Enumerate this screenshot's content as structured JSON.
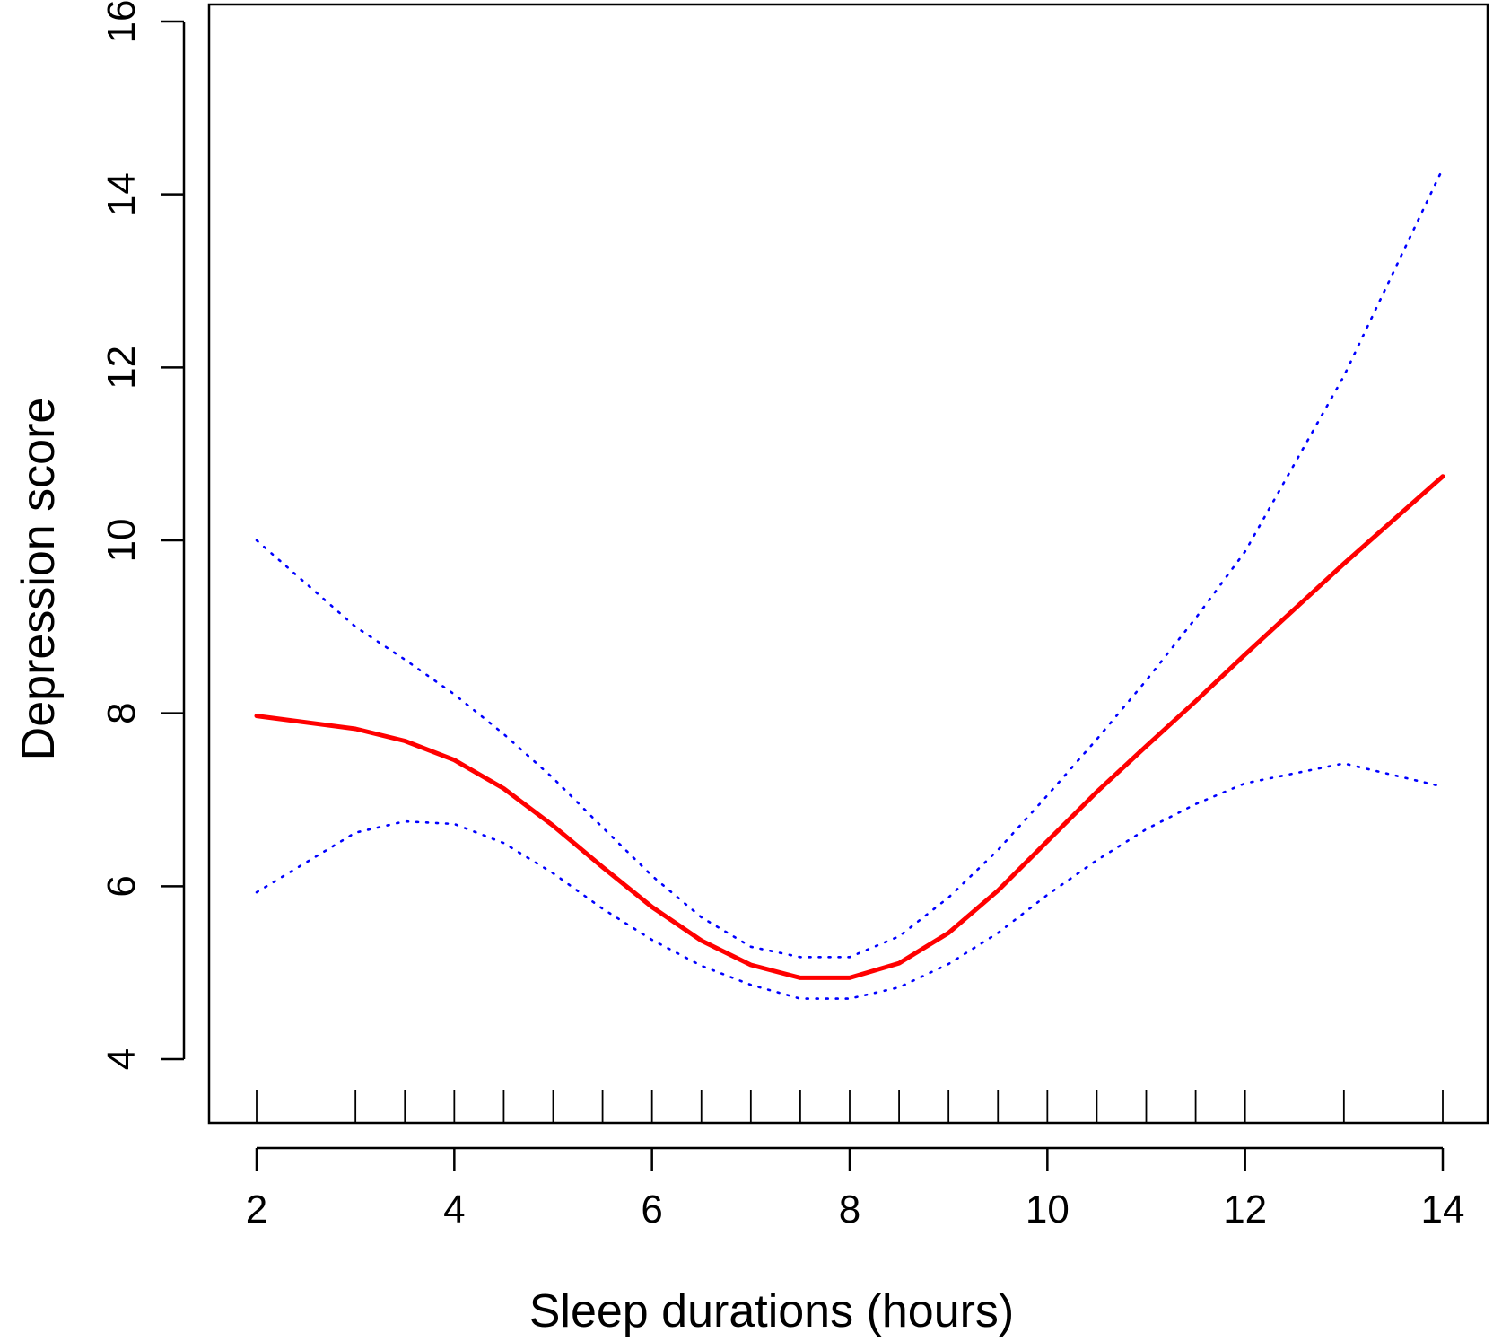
{
  "chart_data": {
    "type": "line",
    "xlabel": "Sleep durations (hours)",
    "ylabel": "Depression score",
    "xlim": [
      2,
      14
    ],
    "ylim": [
      4,
      16
    ],
    "x_ticks": [
      2,
      4,
      6,
      8,
      10,
      12,
      14
    ],
    "y_ticks": [
      4,
      6,
      8,
      10,
      12,
      14,
      16
    ],
    "grid": false,
    "legend": "none",
    "rug_x": [
      2,
      3,
      3.5,
      4,
      4.5,
      5,
      5.5,
      6,
      6.5,
      7,
      7.5,
      8,
      8.5,
      9,
      9.5,
      10,
      10.5,
      11,
      11.5,
      12,
      13,
      14
    ],
    "series": [
      {
        "style": "solid",
        "color": "#ff0000",
        "x": [
          2,
          3,
          3.5,
          4,
          4.5,
          5,
          5.5,
          6,
          6.5,
          7,
          7.5,
          8,
          8.5,
          9,
          9.5,
          10,
          10.5,
          11,
          11.5,
          12,
          13,
          14
        ],
        "y": [
          7.97,
          7.82,
          7.68,
          7.46,
          7.13,
          6.7,
          6.22,
          5.76,
          5.37,
          5.09,
          4.94,
          4.94,
          5.11,
          5.46,
          5.95,
          6.52,
          7.09,
          7.62,
          8.14,
          8.68,
          9.73,
          10.74
        ]
      },
      {
        "style": "dotted",
        "color": "#0000ff",
        "x": [
          2,
          3,
          3.5,
          4,
          4.5,
          5,
          5.5,
          6,
          6.5,
          7,
          7.5,
          8,
          8.5,
          9,
          9.5,
          10,
          10.5,
          11,
          11.5,
          12,
          13,
          14
        ],
        "y": [
          10.0,
          9.0,
          8.62,
          8.22,
          7.76,
          7.25,
          6.68,
          6.12,
          5.64,
          5.3,
          5.18,
          5.18,
          5.42,
          5.87,
          6.42,
          7.05,
          7.7,
          8.38,
          9.1,
          9.87,
          11.9,
          14.3
        ]
      },
      {
        "style": "dotted",
        "color": "#0000ff",
        "x": [
          2,
          3,
          3.5,
          4,
          4.5,
          5,
          5.5,
          6,
          6.5,
          7,
          7.5,
          8,
          8.5,
          9,
          9.5,
          10,
          10.5,
          11,
          11.5,
          12,
          13,
          14
        ],
        "y": [
          5.93,
          6.62,
          6.75,
          6.72,
          6.5,
          6.15,
          5.74,
          5.38,
          5.08,
          4.86,
          4.7,
          4.7,
          4.83,
          5.1,
          5.46,
          5.9,
          6.3,
          6.66,
          6.95,
          7.19,
          7.42,
          7.15
        ]
      }
    ]
  }
}
